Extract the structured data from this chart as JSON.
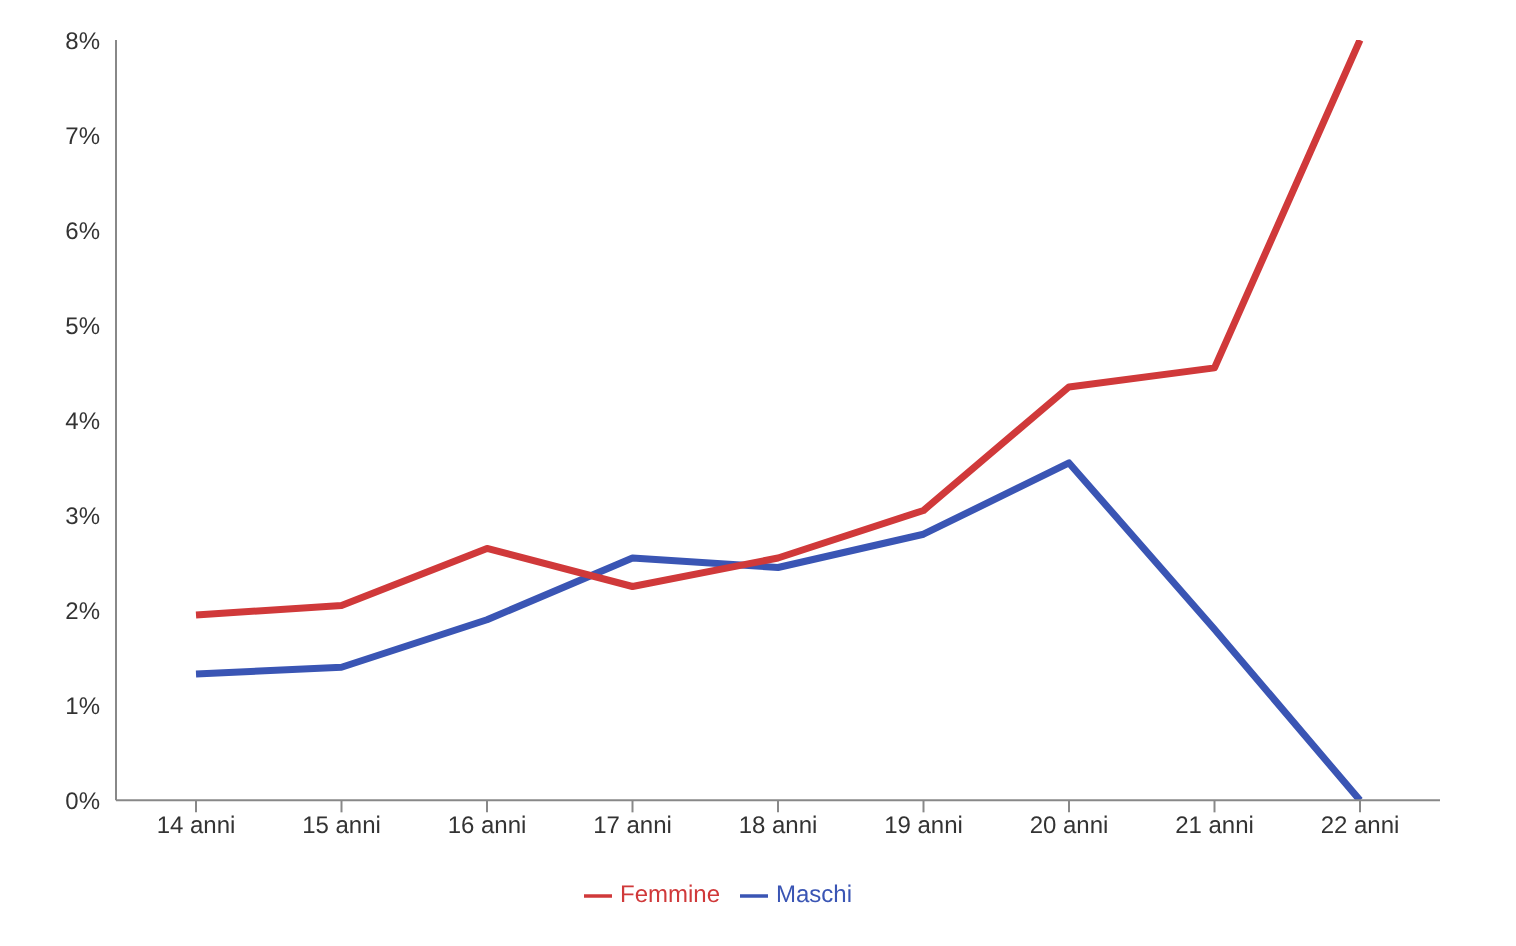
{
  "chart_data": {
    "type": "line",
    "categories": [
      "14 anni",
      "15 anni",
      "16 anni",
      "17 anni",
      "18 anni",
      "19 anni",
      "20 anni",
      "21 anni",
      "22 anni"
    ],
    "series": [
      {
        "name": "Maschi",
        "color": "#3a55b4",
        "values": [
          1.33,
          1.4,
          1.9,
          2.55,
          2.45,
          2.8,
          3.55,
          1.8,
          0
        ]
      },
      {
        "name": "Femmine",
        "color": "#d0393a",
        "values": [
          1.95,
          2.05,
          2.65,
          2.25,
          2.55,
          3.05,
          4.35,
          4.55,
          8
        ]
      }
    ],
    "ylim": [
      0,
      8
    ],
    "yticks": [
      {
        "value": 0,
        "label": "0%"
      },
      {
        "value": 1,
        "label": "1%"
      },
      {
        "value": 2,
        "label": "2%"
      },
      {
        "value": 3,
        "label": "3%"
      },
      {
        "value": 4,
        "label": "4%"
      },
      {
        "value": 5,
        "label": "5%"
      },
      {
        "value": 6,
        "label": "6%"
      },
      {
        "value": 7,
        "label": "7%"
      },
      {
        "value": 8,
        "label": "8%"
      }
    ],
    "grid": false,
    "legend": "bottom",
    "marker": "none",
    "line_style": "solid"
  }
}
